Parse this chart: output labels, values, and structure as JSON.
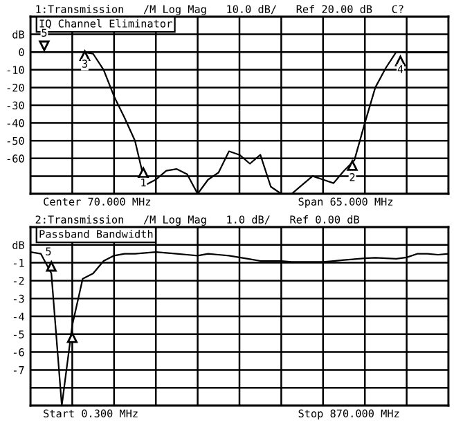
{
  "chart_data": [
    {
      "type": "line",
      "title": "1:Transmission   /M Log Mag   10.0 dB/   Ref 20.00 dB   C?",
      "subtitle": "IQ Channel Eliminator",
      "categories": [
        null,
        null,
        null,
        null,
        null,
        null,
        null,
        null,
        null,
        null,
        null,
        null,
        null,
        null,
        null,
        null,
        null,
        null,
        null,
        null,
        null,
        null,
        null,
        null,
        null,
        null,
        null,
        null,
        null,
        null,
        null,
        null,
        null,
        null,
        null,
        null,
        null,
        null,
        null,
        null,
        null
      ],
      "series": [
        {
          "color": "#000000",
          "values": [
            0,
            0,
            0,
            0,
            0,
            0,
            -1,
            -10,
            -25,
            -37,
            -50,
            -75,
            -72,
            -67,
            -66,
            -69,
            -80,
            -72,
            -68,
            -56,
            -58,
            -63,
            -58,
            -76,
            -80,
            -80,
            -75,
            -70,
            -72,
            -74,
            -67,
            -61,
            -40,
            -20,
            -9,
            0,
            -0.3,
            -0.3,
            -0.3,
            -0.3,
            -0.3
          ]
        }
      ],
      "ylim": [
        -80,
        20
      ],
      "yticks": [
        {
          "value": 20,
          "label": null
        },
        {
          "value": 10,
          "label": "dB"
        },
        0,
        -10,
        -20,
        -30,
        -40,
        -50,
        -60,
        {
          "value": -70,
          "label": null
        },
        {
          "value": -80,
          "label": null
        }
      ],
      "tick_labels": "y",
      "grid": true,
      "marker": "none",
      "line_style": "solid",
      "annotations": [
        "1",
        "2",
        "3",
        "4",
        "5",
        "Center 70.000 MHz",
        "Span 65.000 MHz"
      ]
    },
    {
      "type": "line",
      "title": "2:Transmission   /M Log Mag   1.0 dB/   Ref 0.00 dB",
      "subtitle": "Passband Bandwidth",
      "categories": [
        null,
        null,
        null,
        null,
        null,
        null,
        null,
        null,
        null,
        null,
        null,
        null,
        null,
        null,
        null,
        null,
        null,
        null,
        null,
        null,
        null,
        null,
        null,
        null,
        null,
        null,
        null,
        null,
        null,
        null,
        null,
        null,
        null,
        null,
        null,
        null,
        null,
        null,
        null,
        null,
        null
      ],
      "series": [
        {
          "color": "#000000",
          "values": [
            -0.4,
            -0.5,
            -1.6,
            -9,
            -4.5,
            -1.9,
            -1.6,
            -0.9,
            -0.6,
            -0.5,
            -0.5,
            -0.45,
            -0.4,
            -0.45,
            -0.5,
            -0.55,
            -0.6,
            -0.5,
            -0.55,
            -0.6,
            -0.7,
            -0.8,
            -0.9,
            -0.9,
            -0.9,
            -0.95,
            -0.95,
            -0.95,
            -0.95,
            -0.9,
            -0.85,
            -0.8,
            -0.75,
            -0.72,
            -0.75,
            -0.78,
            -0.7,
            -0.5,
            -0.5,
            -0.55,
            -0.5
          ]
        }
      ],
      "ylim": [
        -9,
        1
      ],
      "yticks": [
        {
          "value": 1,
          "label": null
        },
        {
          "value": 0,
          "label": "dB"
        },
        -1,
        -2,
        -3,
        -4,
        -5,
        -6,
        -7,
        {
          "value": -8,
          "label": null
        },
        {
          "value": -9,
          "label": null
        }
      ],
      "tick_labels": "y",
      "grid": true,
      "marker": "none",
      "line_style": "solid",
      "annotations": [
        "5",
        "Start 0.300 MHz",
        "Stop 870.000 MHz"
      ]
    }
  ]
}
